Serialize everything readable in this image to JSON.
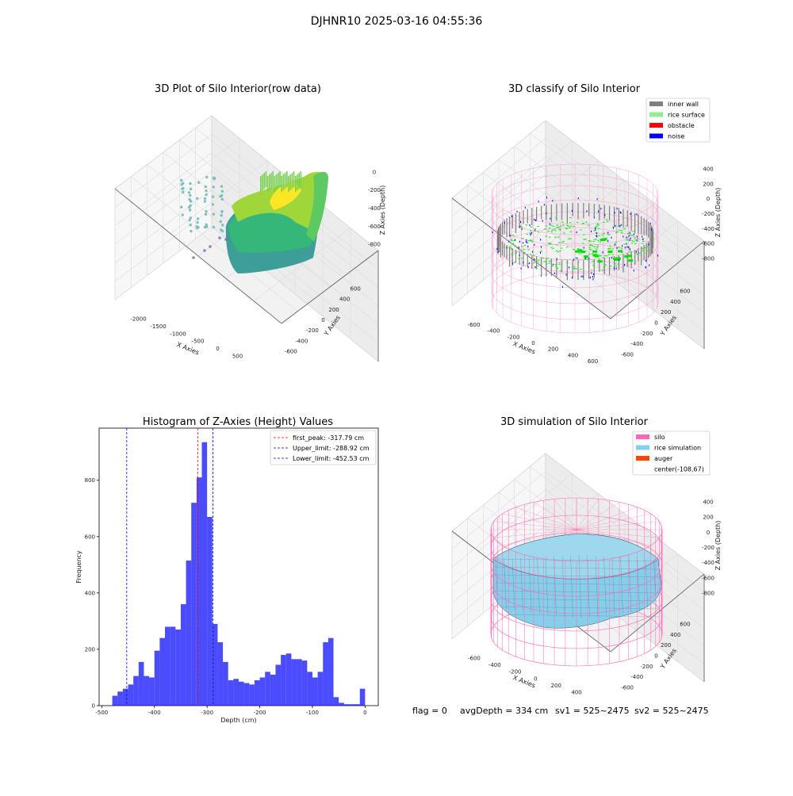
{
  "figure": {
    "suptitle": "DJHNR10 2025-03-16 04:55:36",
    "status": {
      "flag": "flag = 0",
      "avg_depth": "avgDepth = 334 cm",
      "sv1": "sv1 = 525~2475",
      "sv2": "sv2 = 525~2475"
    }
  },
  "chart_data": [
    {
      "type": "scatter",
      "projection": "3d",
      "title": "3D Plot of Silo Interior(row data)",
      "xlabel": "X Axies",
      "ylabel": "Y Axies",
      "zlabel": "Z Axies (Depth)",
      "x_ticks": [
        "-2000",
        "-1500",
        "-1000",
        "-500",
        "0",
        "500"
      ],
      "y_ticks": [
        "-600",
        "-400",
        "-200",
        "0",
        "200",
        "400",
        "600"
      ],
      "z_ticks": [
        "0",
        "-200",
        "-400",
        "-600",
        "-800"
      ],
      "colormap": "viridis",
      "colors": {
        "low": "#1f8f8b",
        "mid": "#35b779",
        "high": "#fde725",
        "sparse": "#7fbfbf",
        "outlier": "#9a7fb5"
      }
    },
    {
      "type": "scatter",
      "projection": "3d",
      "title": "3D classify of Silo Interior",
      "xlabel": "X Axies",
      "ylabel": "Y Axies",
      "zlabel": "Z Axies (Depth)",
      "x_ticks": [
        "-600",
        "-400",
        "-200",
        "0",
        "200",
        "400",
        "600"
      ],
      "y_ticks": [
        "-600",
        "-400",
        "-200",
        "0",
        "200",
        "400",
        "600"
      ],
      "z_ticks": [
        "400",
        "200",
        "0",
        "-200",
        "-400",
        "-600",
        "-800"
      ],
      "legend": [
        {
          "label": "inner wall",
          "color": "#808080"
        },
        {
          "label": "rice surface",
          "color": "#90ee90"
        },
        {
          "label": "obstacle",
          "color": "#ff0000"
        },
        {
          "label": "noise",
          "color": "#0000ff"
        }
      ],
      "legend_position": "top-right",
      "colors": {
        "wireframe": "#ff88cc",
        "wall": "#808080",
        "surface": "#22ee22",
        "noise": "#0000ff"
      }
    },
    {
      "type": "bar",
      "title": "Histogram of Z-Axies (Height) Values",
      "xlabel": "Depth (cm)",
      "ylabel": "Frequency",
      "xlim": [
        -505,
        25
      ],
      "ylim": [
        0,
        985
      ],
      "bin_width": 10,
      "bin_starts": [
        -480,
        -470,
        -460,
        -450,
        -440,
        -430,
        -420,
        -410,
        -400,
        -390,
        -380,
        -370,
        -360,
        -350,
        -340,
        -330,
        -320,
        -310,
        -300,
        -290,
        -280,
        -270,
        -260,
        -250,
        -240,
        -230,
        -220,
        -210,
        -200,
        -190,
        -180,
        -170,
        -160,
        -150,
        -140,
        -130,
        -120,
        -110,
        -100,
        -90,
        -80,
        -70,
        -60,
        -50,
        -40,
        -30,
        -20,
        -10
      ],
      "values": [
        35,
        50,
        60,
        75,
        105,
        155,
        105,
        100,
        195,
        240,
        280,
        280,
        270,
        360,
        515,
        720,
        810,
        935,
        670,
        290,
        225,
        155,
        90,
        95,
        85,
        80,
        75,
        90,
        100,
        120,
        110,
        145,
        180,
        185,
        165,
        165,
        160,
        120,
        100,
        120,
        225,
        240,
        30,
        10,
        5,
        5,
        5,
        60
      ],
      "bar_color": "#0000ff",
      "x_ticks": [
        -500,
        -400,
        -300,
        -200,
        -100,
        0
      ],
      "y_ticks": [
        0,
        200,
        400,
        600,
        800
      ],
      "vlines": [
        {
          "label": "first_peak: -317.79 cm",
          "x": -317.79,
          "color": "#ff0000"
        },
        {
          "label": "Upper_limit: -288.92 cm",
          "x": -288.92,
          "color": "#0000ff"
        },
        {
          "label": "Lower_limit: -452.53 cm",
          "x": -452.53,
          "color": "#0000ff"
        }
      ],
      "legend_position": "top-right"
    },
    {
      "type": "surface",
      "projection": "3d",
      "title": "3D simulation of Silo Interior",
      "xlabel": "X Axies",
      "ylabel": "Y Axies",
      "zlabel": "Z Axies (Depth)",
      "x_ticks": [
        "-600",
        "-400",
        "-200",
        "0",
        "200",
        "400"
      ],
      "y_ticks": [
        "-600",
        "-400",
        "-200",
        "0",
        "200",
        "400",
        "600"
      ],
      "z_ticks": [
        "400",
        "200",
        "0",
        "-200",
        "-400",
        "-600",
        "-800"
      ],
      "legend": [
        {
          "label": "silo",
          "color": "#ff69b4"
        },
        {
          "label": "rice simulation",
          "color": "#87ceeb"
        },
        {
          "label": "auger",
          "color": "#ff4500"
        },
        {
          "label": "center(-108,67)",
          "color": ""
        }
      ],
      "legend_position": "top-right",
      "colors": {
        "wireframe": "#ff69b4",
        "surface": "#87ceeb",
        "mesh": "#33556a"
      }
    }
  ]
}
